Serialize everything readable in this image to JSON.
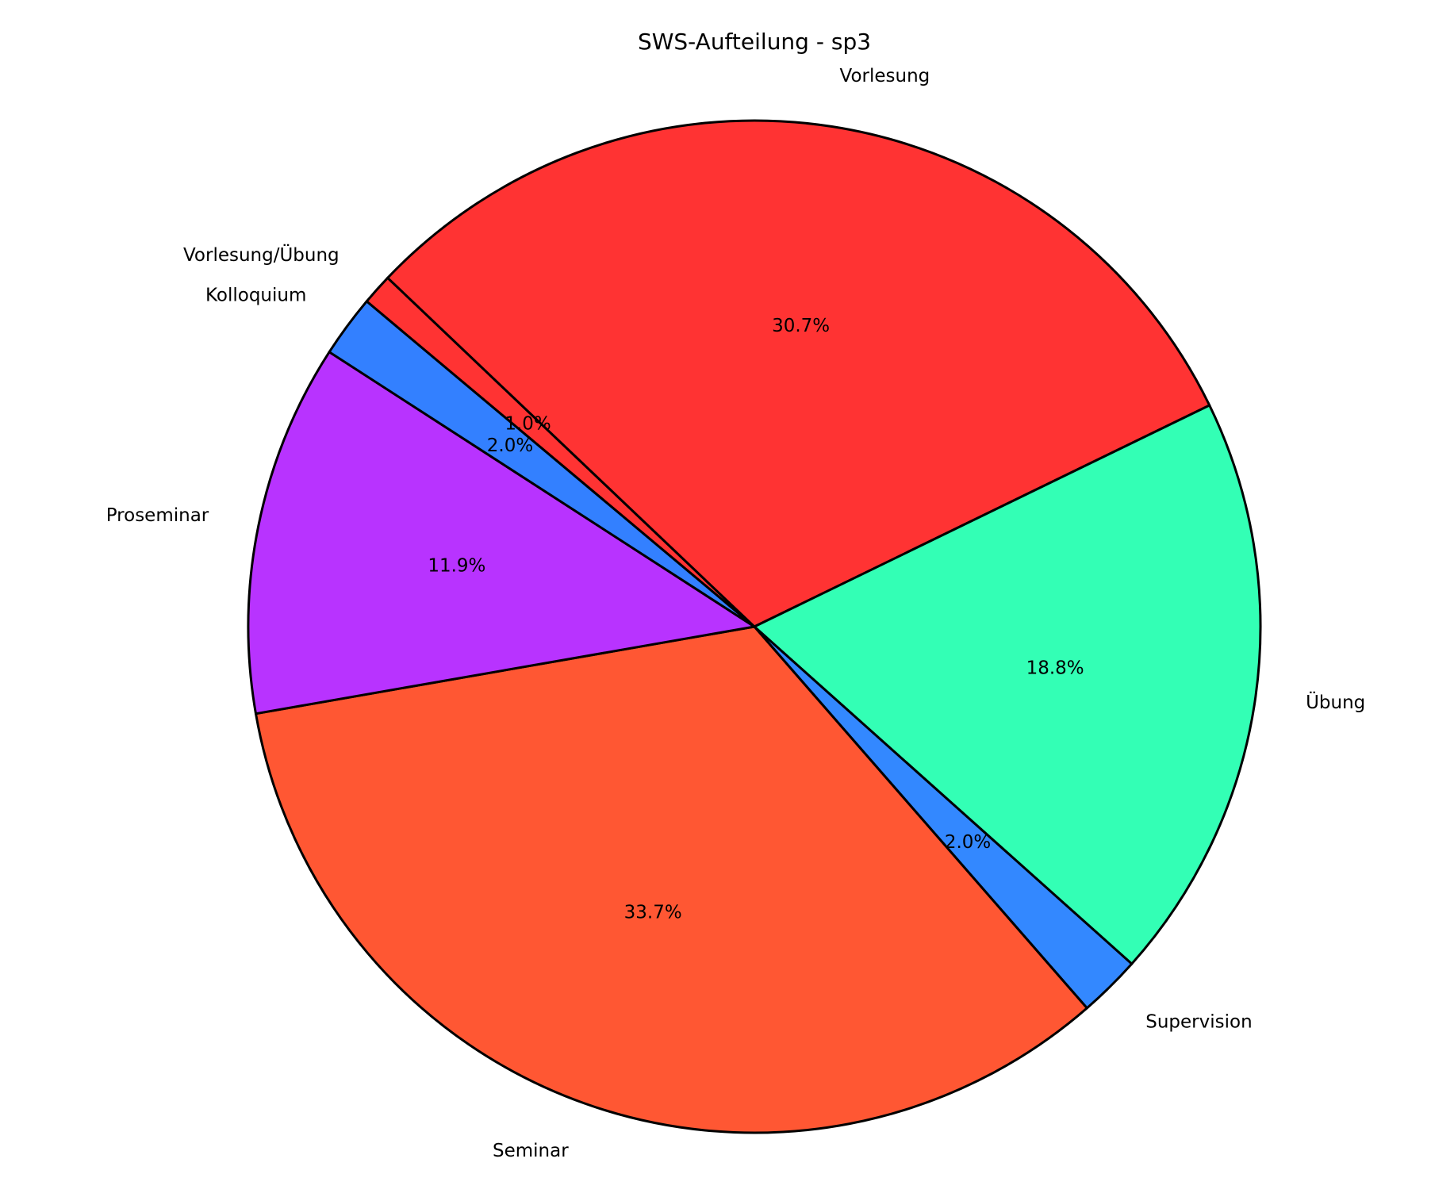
{
  "chart_data": {
    "type": "pie",
    "title": "SWS-Aufteilung - sp3",
    "start_angle_deg": 140,
    "direction": "clockwise",
    "slices": [
      {
        "label": "Vorlesung/Übung",
        "value": 1,
        "pct_label": "1.0%",
        "color": "#ff3333"
      },
      {
        "label": "Vorlesung",
        "value": 31,
        "pct_label": "30.7%",
        "color": "#ff3333"
      },
      {
        "label": "Übung",
        "value": 19,
        "pct_label": "18.8%",
        "color": "#33ffb5"
      },
      {
        "label": "Supervision",
        "value": 2,
        "pct_label": "2.0%",
        "color": "#3388ff"
      },
      {
        "label": "Seminar",
        "value": 34,
        "pct_label": "33.7%",
        "color": "#ff5733"
      },
      {
        "label": "Proseminar",
        "value": 12,
        "pct_label": "11.9%",
        "color": "#b833ff"
      },
      {
        "label": "Kolloquium",
        "value": 2,
        "pct_label": "2.0%",
        "color": "#3380ff"
      }
    ]
  }
}
